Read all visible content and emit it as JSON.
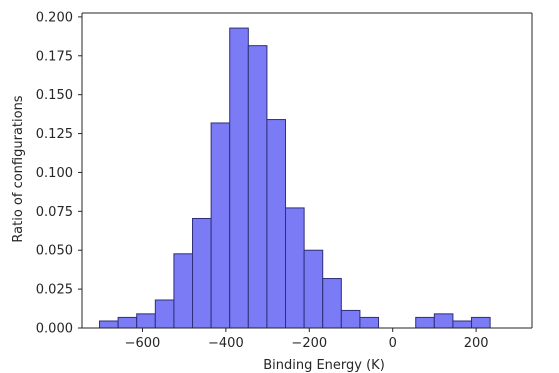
{
  "chart_data": {
    "type": "bar",
    "histogram": true,
    "bin_width": 44.6,
    "bins": [
      {
        "x0": -703,
        "x1": -658.4,
        "value": 0.0045
      },
      {
        "x0": -658.4,
        "x1": -613.8,
        "value": 0.0068
      },
      {
        "x0": -613.8,
        "x1": -569.2,
        "value": 0.0091
      },
      {
        "x0": -569.2,
        "x1": -524.6,
        "value": 0.018
      },
      {
        "x0": -524.6,
        "x1": -480.0,
        "value": 0.0477
      },
      {
        "x0": -480.0,
        "x1": -435.4,
        "value": 0.0704
      },
      {
        "x0": -435.4,
        "x1": -390.8,
        "value": 0.1318
      },
      {
        "x0": -390.8,
        "x1": -346.2,
        "value": 0.1928
      },
      {
        "x0": -346.2,
        "x1": -301.6,
        "value": 0.1815
      },
      {
        "x0": -301.6,
        "x1": -257.0,
        "value": 0.134
      },
      {
        "x0": -257.0,
        "x1": -212.4,
        "value": 0.0772
      },
      {
        "x0": -212.4,
        "x1": -167.8,
        "value": 0.05
      },
      {
        "x0": -167.8,
        "x1": -123.2,
        "value": 0.0318
      },
      {
        "x0": -123.2,
        "x1": -78.6,
        "value": 0.0113
      },
      {
        "x0": -78.6,
        "x1": -34.0,
        "value": 0.0068
      },
      {
        "x0": -34.0,
        "x1": 10.6,
        "value": 0.0
      },
      {
        "x0": 10.6,
        "x1": 55.2,
        "value": 0.0
      },
      {
        "x0": 55.2,
        "x1": 99.8,
        "value": 0.0068
      },
      {
        "x0": 99.8,
        "x1": 144.4,
        "value": 0.0091
      },
      {
        "x0": 144.4,
        "x1": 189.0,
        "value": 0.0045
      },
      {
        "x0": 189.0,
        "x1": 233.6,
        "value": 0.0068
      }
    ],
    "title": "",
    "xlabel": "Binding Energy (K)",
    "ylabel": "Ratio of configurations",
    "xlim": [
      -745,
      334
    ],
    "ylim": [
      0,
      0.2025
    ],
    "xticks": [
      -600,
      -400,
      -200,
      0,
      200
    ],
    "xtick_labels": [
      "−600",
      "−400",
      "−200",
      "0",
      "200"
    ],
    "yticks": [
      0.0,
      0.025,
      0.05,
      0.075,
      0.1,
      0.125,
      0.15,
      0.175,
      0.2
    ],
    "ytick_labels": [
      "0.000",
      "0.025",
      "0.050",
      "0.075",
      "0.100",
      "0.125",
      "0.150",
      "0.175",
      "0.200"
    ],
    "grid": false,
    "legend": "none",
    "bar_color": "#7b7bf5",
    "edge_color": "#2e2e7a"
  }
}
